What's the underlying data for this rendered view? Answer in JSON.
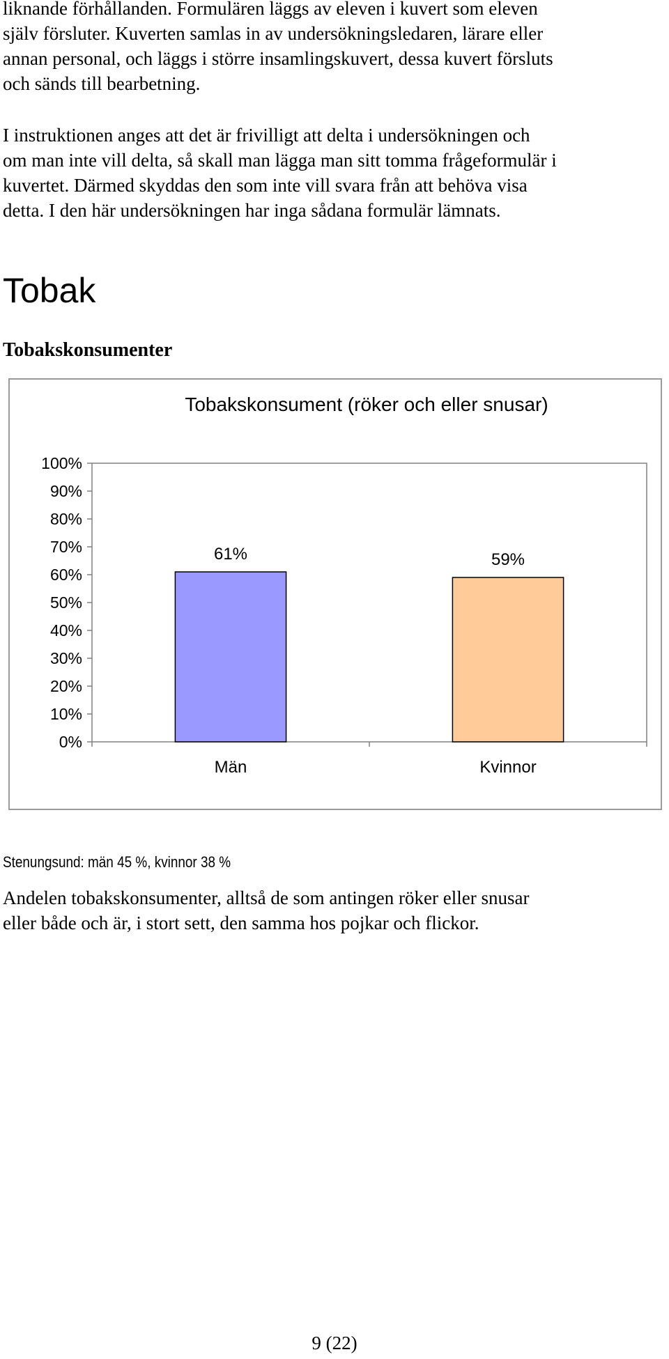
{
  "document": {
    "paragraph_1_lines": [
      "liknande förhållanden. Formulären läggs av eleven i kuvert som eleven",
      "själv försluter. Kuverten samlas in av undersökningsledaren, lärare eller",
      "annan personal, och läggs i större insamlingskuvert, dessa kuvert försluts",
      "och sänds till bearbetning."
    ],
    "paragraph_2_lines": [
      "I instruktionen anges att det är frivilligt att delta i undersökningen och",
      "om man inte vill delta, så skall man lägga man sitt tomma frågeformulär i",
      "kuvertet. Därmed skyddas den som inte vill svara från att behöva visa",
      "detta. I den här undersökningen har inga sådana formulär lämnats."
    ],
    "section_heading": "Tobak",
    "sub_heading": "Tobakskonsumenter",
    "note": "Stenungsund: män 45 %, kvinnor 38 %",
    "paragraph_3_lines": [
      "Andelen tobakskonsumenter, alltså de som antingen röker eller snusar",
      "eller både och är, i stort sett, den samma hos pojkar och flickor."
    ],
    "page_number": "9 (22)"
  },
  "chart_data": {
    "type": "bar",
    "title": "Tobakskonsument (röker och eller snusar)",
    "categories": [
      "Män",
      "Kvinnor"
    ],
    "values": [
      61,
      59
    ],
    "data_labels": [
      "61%",
      "59%"
    ],
    "colors": [
      "#9999FF",
      "#FFCC99"
    ],
    "ylim": [
      0,
      100
    ],
    "y_tick_step": 10,
    "y_tick_labels": [
      "0%",
      "10%",
      "20%",
      "30%",
      "40%",
      "50%",
      "60%",
      "70%",
      "80%",
      "90%",
      "100%"
    ],
    "xlabel": "",
    "ylabel": "",
    "grid": false,
    "legend": false
  }
}
